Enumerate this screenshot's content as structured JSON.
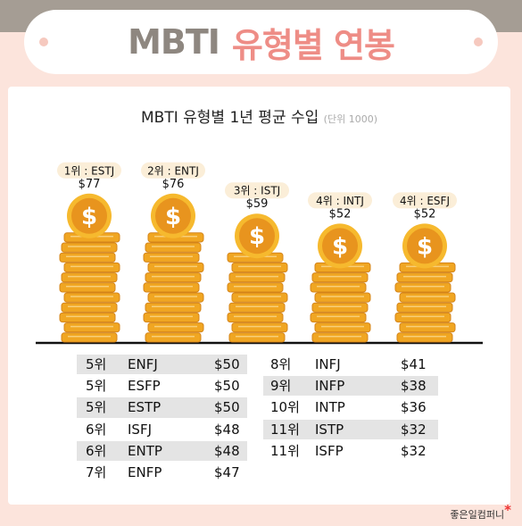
{
  "header": {
    "title_part1": "MBTI",
    "title_part2": "유형별 연봉"
  },
  "chart_data": {
    "type": "bar",
    "title": "MBTI 유형별 1년 평균 수입",
    "unit_note": "(단위 1000)",
    "categories": [
      "1위 : ESTJ",
      "2위 : ENTJ",
      "3위 : ISTJ",
      "4위 : INTJ",
      "4위 : ESFJ"
    ],
    "values": [
      77,
      76,
      59,
      52,
      52
    ],
    "value_labels": [
      "$77",
      "$76",
      "$59",
      "$52",
      "$52"
    ],
    "ylim": [
      0,
      77
    ],
    "colors": {
      "coin": "#f2a72c",
      "coin_face": "#e8941e",
      "stack": "#f0a622",
      "stack_dark": "#d4841a",
      "label_bg": "#fbeed8"
    }
  },
  "rankings": {
    "left": [
      {
        "rank": "5위",
        "type": "ENFJ",
        "income": "$50",
        "shaded": true
      },
      {
        "rank": "5위",
        "type": "ESFP",
        "income": "$50",
        "shaded": false
      },
      {
        "rank": "5위",
        "type": "ESTP",
        "income": "$50",
        "shaded": true
      },
      {
        "rank": "6위",
        "type": "ISFJ",
        "income": "$48",
        "shaded": false
      },
      {
        "rank": "6위",
        "type": "ENTP",
        "income": "$48",
        "shaded": true
      },
      {
        "rank": "7위",
        "type": "ENFP",
        "income": "$47",
        "shaded": false
      }
    ],
    "right": [
      {
        "rank": "8위",
        "type": "INFJ",
        "income": "$41",
        "shaded": false
      },
      {
        "rank": "9위",
        "type": "INFP",
        "income": "$38",
        "shaded": true
      },
      {
        "rank": "10위",
        "type": "INTP",
        "income": "$36",
        "shaded": false
      },
      {
        "rank": "11위",
        "type": "ISTP",
        "income": "$32",
        "shaded": true
      },
      {
        "rank": "11위",
        "type": "ISFP",
        "income": "$32",
        "shaded": false
      }
    ]
  },
  "footer": {
    "credit": "좋은일컴퍼니",
    "credit_mark": "*"
  }
}
